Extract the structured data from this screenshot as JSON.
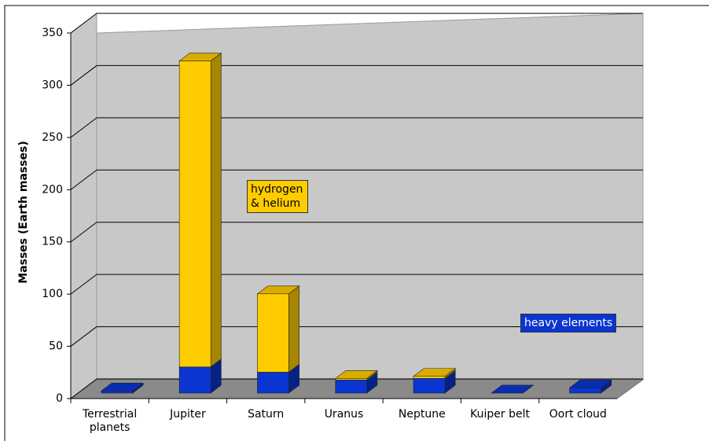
{
  "chart_data": {
    "type": "bar3d_stacked",
    "ylabel": "Masses (Earth masses)",
    "categories": [
      "Terrestrial planets",
      "Jupiter",
      "Saturn",
      "Uranus",
      "Neptune",
      "Kuiper belt",
      "Oort cloud"
    ],
    "series": [
      {
        "name": "heavy elements",
        "color": "#0a35d0",
        "values": [
          2,
          25,
          20,
          12.5,
          14,
          0.1,
          5
        ]
      },
      {
        "name": "hydrogen & helium",
        "color": "#ffcc00",
        "values": [
          0,
          293,
          75,
          1.5,
          2,
          0,
          0
        ]
      }
    ],
    "ylim": [
      0,
      350
    ],
    "yticks": [
      0,
      50,
      100,
      150,
      200,
      250,
      300,
      350
    ],
    "grid": true
  }
}
